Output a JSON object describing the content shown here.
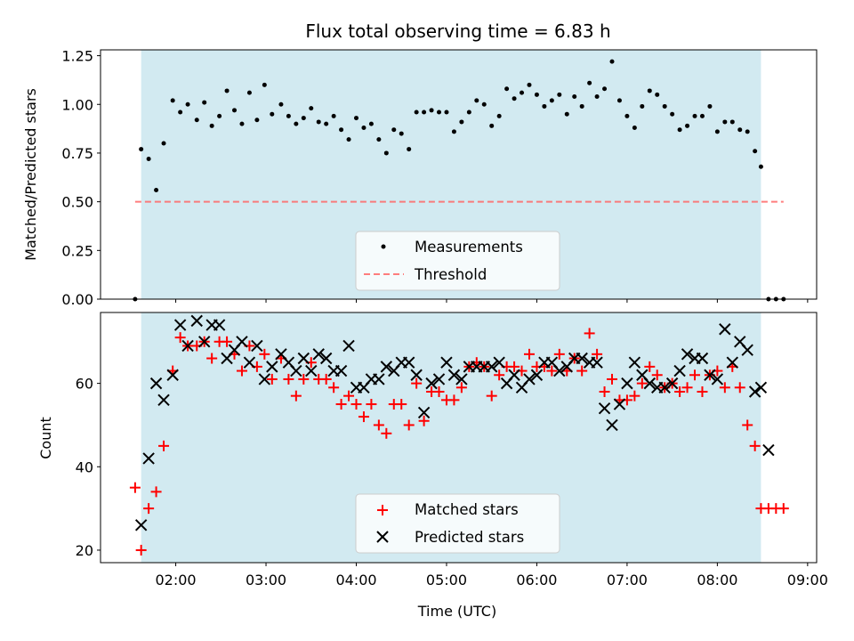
{
  "chart_data": [
    {
      "type": "scatter",
      "title": "Flux total observing time = 6.83 h",
      "ylabel": "Matched/Predicted stars",
      "xlabel": "",
      "xlim": [
        "01:10",
        "09:06"
      ],
      "ylim": [
        0,
        1.28
      ],
      "yticks": [
        "0.00",
        "0.25",
        "0.50",
        "0.75",
        "1.00",
        "1.25"
      ],
      "xticks": [
        "02:00",
        "03:00",
        "04:00",
        "05:00",
        "06:00",
        "07:00",
        "08:00",
        "09:00"
      ],
      "shaded_span": [
        "01:37",
        "08:29"
      ],
      "shaded_color": "#add8e6",
      "legend_position": "lower center",
      "threshold": {
        "name": "Threshold",
        "y": 0.5,
        "x_range": [
          "01:33",
          "08:44"
        ],
        "color": "#ff6666",
        "style": "dashed"
      },
      "series": [
        {
          "name": "Measurements",
          "color": "#000000",
          "marker": "dot",
          "points": [
            [
              "01:33",
              0.0
            ],
            [
              "01:37",
              0.77
            ],
            [
              "01:42",
              0.72
            ],
            [
              "01:47",
              0.56
            ],
            [
              "01:52",
              0.8
            ],
            [
              "01:58",
              1.02
            ],
            [
              "02:03",
              0.96
            ],
            [
              "02:08",
              1.0
            ],
            [
              "02:14",
              0.92
            ],
            [
              "02:19",
              1.01
            ],
            [
              "02:24",
              0.89
            ],
            [
              "02:29",
              0.94
            ],
            [
              "02:34",
              1.07
            ],
            [
              "02:39",
              0.97
            ],
            [
              "02:44",
              0.9
            ],
            [
              "02:49",
              1.06
            ],
            [
              "02:54",
              0.92
            ],
            [
              "02:59",
              1.1
            ],
            [
              "03:04",
              0.95
            ],
            [
              "03:10",
              1.0
            ],
            [
              "03:15",
              0.94
            ],
            [
              "03:20",
              0.9
            ],
            [
              "03:25",
              0.93
            ],
            [
              "03:30",
              0.98
            ],
            [
              "03:35",
              0.91
            ],
            [
              "03:40",
              0.9
            ],
            [
              "03:45",
              0.94
            ],
            [
              "03:50",
              0.87
            ],
            [
              "03:55",
              0.82
            ],
            [
              "04:00",
              0.93
            ],
            [
              "04:05",
              0.88
            ],
            [
              "04:10",
              0.9
            ],
            [
              "04:15",
              0.82
            ],
            [
              "04:20",
              0.75
            ],
            [
              "04:25",
              0.87
            ],
            [
              "04:30",
              0.85
            ],
            [
              "04:35",
              0.77
            ],
            [
              "04:40",
              0.96
            ],
            [
              "04:45",
              0.96
            ],
            [
              "04:50",
              0.97
            ],
            [
              "04:55",
              0.96
            ],
            [
              "05:00",
              0.96
            ],
            [
              "05:05",
              0.86
            ],
            [
              "05:10",
              0.91
            ],
            [
              "05:15",
              0.96
            ],
            [
              "05:20",
              1.02
            ],
            [
              "05:25",
              1.0
            ],
            [
              "05:30",
              0.89
            ],
            [
              "05:35",
              0.94
            ],
            [
              "05:40",
              1.08
            ],
            [
              "05:45",
              1.03
            ],
            [
              "05:50",
              1.06
            ],
            [
              "05:55",
              1.1
            ],
            [
              "06:00",
              1.05
            ],
            [
              "06:05",
              0.99
            ],
            [
              "06:10",
              1.02
            ],
            [
              "06:15",
              1.05
            ],
            [
              "06:20",
              0.95
            ],
            [
              "06:25",
              1.04
            ],
            [
              "06:30",
              0.99
            ],
            [
              "06:35",
              1.11
            ],
            [
              "06:40",
              1.04
            ],
            [
              "06:45",
              1.08
            ],
            [
              "06:50",
              1.22
            ],
            [
              "06:55",
              1.02
            ],
            [
              "07:00",
              0.94
            ],
            [
              "07:05",
              0.88
            ],
            [
              "07:10",
              0.99
            ],
            [
              "07:15",
              1.07
            ],
            [
              "07:20",
              1.05
            ],
            [
              "07:25",
              0.99
            ],
            [
              "07:30",
              0.95
            ],
            [
              "07:35",
              0.87
            ],
            [
              "07:40",
              0.89
            ],
            [
              "07:45",
              0.94
            ],
            [
              "07:50",
              0.94
            ],
            [
              "07:55",
              0.99
            ],
            [
              "08:00",
              0.86
            ],
            [
              "08:05",
              0.91
            ],
            [
              "08:10",
              0.91
            ],
            [
              "08:15",
              0.87
            ],
            [
              "08:20",
              0.86
            ],
            [
              "08:25",
              0.76
            ],
            [
              "08:29",
              0.68
            ],
            [
              "08:34",
              0.0
            ],
            [
              "08:39",
              0.0
            ],
            [
              "08:44",
              0.0
            ]
          ]
        }
      ]
    },
    {
      "type": "scatter",
      "title": "",
      "xlabel": "Time (UTC)",
      "ylabel": "Count",
      "xlim": [
        "01:10",
        "09:06"
      ],
      "ylim": [
        17,
        77
      ],
      "yticks": [
        "20",
        "40",
        "60"
      ],
      "xticks": [
        "02:00",
        "03:00",
        "04:00",
        "05:00",
        "06:00",
        "07:00",
        "08:00",
        "09:00"
      ],
      "shaded_span": [
        "01:37",
        "08:29"
      ],
      "shaded_color": "#add8e6",
      "legend_position": "lower center",
      "series": [
        {
          "name": "Matched stars",
          "color": "#ff0000",
          "marker": "plus",
          "points": [
            [
              "01:33",
              35
            ],
            [
              "01:37",
              20
            ],
            [
              "01:42",
              30
            ],
            [
              "01:47",
              34
            ],
            [
              "01:52",
              45
            ],
            [
              "01:58",
              63
            ],
            [
              "02:03",
              71
            ],
            [
              "02:08",
              69
            ],
            [
              "02:14",
              69
            ],
            [
              "02:19",
              70
            ],
            [
              "02:24",
              66
            ],
            [
              "02:29",
              70
            ],
            [
              "02:34",
              70
            ],
            [
              "02:39",
              67
            ],
            [
              "02:44",
              63
            ],
            [
              "02:49",
              69
            ],
            [
              "02:54",
              64
            ],
            [
              "02:59",
              67
            ],
            [
              "03:04",
              61
            ],
            [
              "03:10",
              66
            ],
            [
              "03:15",
              61
            ],
            [
              "03:20",
              57
            ],
            [
              "03:25",
              61
            ],
            [
              "03:30",
              65
            ],
            [
              "03:35",
              61
            ],
            [
              "03:40",
              61
            ],
            [
              "03:45",
              59
            ],
            [
              "03:50",
              55
            ],
            [
              "03:55",
              57
            ],
            [
              "04:00",
              55
            ],
            [
              "04:05",
              52
            ],
            [
              "04:10",
              55
            ],
            [
              "04:15",
              50
            ],
            [
              "04:20",
              48
            ],
            [
              "04:25",
              55
            ],
            [
              "04:30",
              55
            ],
            [
              "04:35",
              50
            ],
            [
              "04:40",
              60
            ],
            [
              "04:45",
              51
            ],
            [
              "04:50",
              58
            ],
            [
              "04:55",
              58
            ],
            [
              "05:00",
              56
            ],
            [
              "05:05",
              56
            ],
            [
              "05:10",
              59
            ],
            [
              "05:15",
              64
            ],
            [
              "05:20",
              65
            ],
            [
              "05:25",
              64
            ],
            [
              "05:30",
              57
            ],
            [
              "05:35",
              62
            ],
            [
              "05:40",
              64
            ],
            [
              "05:45",
              64
            ],
            [
              "05:50",
              63
            ],
            [
              "05:55",
              67
            ],
            [
              "06:00",
              64
            ],
            [
              "06:05",
              64
            ],
            [
              "06:10",
              63
            ],
            [
              "06:15",
              67
            ],
            [
              "06:20",
              63
            ],
            [
              "06:25",
              66
            ],
            [
              "06:30",
              63
            ],
            [
              "06:35",
              72
            ],
            [
              "06:40",
              67
            ],
            [
              "06:45",
              58
            ],
            [
              "06:50",
              61
            ],
            [
              "06:55",
              56
            ],
            [
              "07:00",
              56
            ],
            [
              "07:05",
              57
            ],
            [
              "07:10",
              60
            ],
            [
              "07:15",
              64
            ],
            [
              "07:20",
              62
            ],
            [
              "07:25",
              59
            ],
            [
              "07:30",
              60
            ],
            [
              "07:35",
              58
            ],
            [
              "07:40",
              59
            ],
            [
              "07:45",
              62
            ],
            [
              "07:50",
              58
            ],
            [
              "07:55",
              62
            ],
            [
              "08:00",
              63
            ],
            [
              "08:05",
              59
            ],
            [
              "08:10",
              64
            ],
            [
              "08:15",
              59
            ],
            [
              "08:20",
              50
            ],
            [
              "08:25",
              45
            ],
            [
              "08:29",
              30
            ],
            [
              "08:34",
              30
            ],
            [
              "08:39",
              30
            ],
            [
              "08:44",
              30
            ]
          ]
        },
        {
          "name": "Predicted stars",
          "color": "#000000",
          "marker": "x",
          "points": [
            [
              "01:37",
              26
            ],
            [
              "01:42",
              42
            ],
            [
              "01:47",
              60
            ],
            [
              "01:52",
              56
            ],
            [
              "01:58",
              62
            ],
            [
              "02:03",
              74
            ],
            [
              "02:08",
              69
            ],
            [
              "02:14",
              75
            ],
            [
              "02:19",
              70
            ],
            [
              "02:24",
              74
            ],
            [
              "02:29",
              74
            ],
            [
              "02:34",
              66
            ],
            [
              "02:39",
              68
            ],
            [
              "02:44",
              70
            ],
            [
              "02:49",
              65
            ],
            [
              "02:54",
              69
            ],
            [
              "02:59",
              61
            ],
            [
              "03:04",
              64
            ],
            [
              "03:10",
              67
            ],
            [
              "03:15",
              65
            ],
            [
              "03:20",
              63
            ],
            [
              "03:25",
              66
            ],
            [
              "03:30",
              63
            ],
            [
              "03:35",
              67
            ],
            [
              "03:40",
              66
            ],
            [
              "03:45",
              63
            ],
            [
              "03:50",
              63
            ],
            [
              "03:55",
              69
            ],
            [
              "04:00",
              59
            ],
            [
              "04:05",
              59
            ],
            [
              "04:10",
              61
            ],
            [
              "04:15",
              61
            ],
            [
              "04:20",
              64
            ],
            [
              "04:25",
              63
            ],
            [
              "04:30",
              65
            ],
            [
              "04:35",
              65
            ],
            [
              "04:40",
              62
            ],
            [
              "04:45",
              53
            ],
            [
              "04:50",
              60
            ],
            [
              "04:55",
              61
            ],
            [
              "05:00",
              65
            ],
            [
              "05:05",
              62
            ],
            [
              "05:10",
              61
            ],
            [
              "05:15",
              64
            ],
            [
              "05:20",
              64
            ],
            [
              "05:25",
              64
            ],
            [
              "05:30",
              64
            ],
            [
              "05:35",
              65
            ],
            [
              "05:40",
              60
            ],
            [
              "05:45",
              62
            ],
            [
              "05:50",
              59
            ],
            [
              "05:55",
              61
            ],
            [
              "06:00",
              62
            ],
            [
              "06:05",
              65
            ],
            [
              "06:10",
              65
            ],
            [
              "06:15",
              63
            ],
            [
              "06:20",
              64
            ],
            [
              "06:25",
              66
            ],
            [
              "06:30",
              66
            ],
            [
              "06:35",
              65
            ],
            [
              "06:40",
              65
            ],
            [
              "06:45",
              54
            ],
            [
              "06:50",
              50
            ],
            [
              "06:55",
              55
            ],
            [
              "07:00",
              60
            ],
            [
              "07:05",
              65
            ],
            [
              "07:10",
              62
            ],
            [
              "07:15",
              60
            ],
            [
              "07:20",
              59
            ],
            [
              "07:25",
              59
            ],
            [
              "07:30",
              60
            ],
            [
              "07:35",
              63
            ],
            [
              "07:40",
              67
            ],
            [
              "07:45",
              66
            ],
            [
              "07:50",
              66
            ],
            [
              "07:55",
              62
            ],
            [
              "08:00",
              61
            ],
            [
              "08:05",
              73
            ],
            [
              "08:10",
              65
            ],
            [
              "08:15",
              70
            ],
            [
              "08:20",
              68
            ],
            [
              "08:25",
              58
            ],
            [
              "08:29",
              59
            ],
            [
              "08:34",
              44
            ]
          ]
        }
      ]
    }
  ]
}
